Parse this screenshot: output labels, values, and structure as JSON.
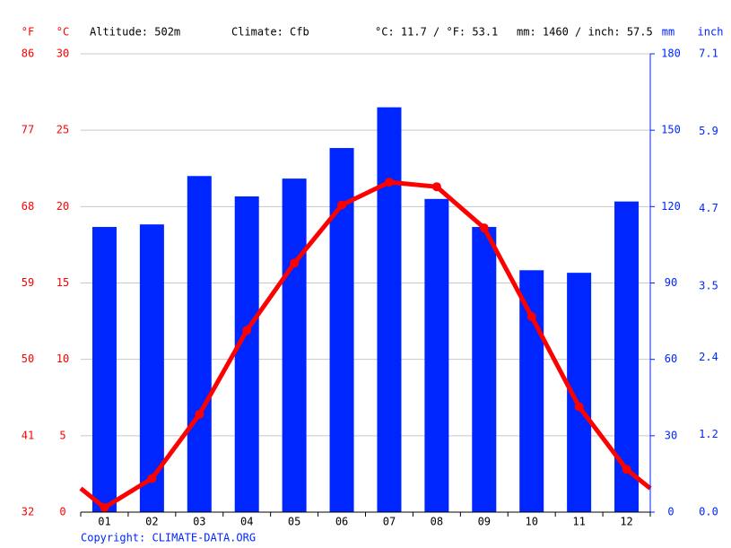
{
  "chart_data": {
    "type": "combo",
    "header": {
      "altitude": "Altitude: 502m",
      "climate": "Climate: Cfb",
      "temperature_mean": "°C: 11.7 / °F: 53.1",
      "precipitation_total": "mm: 1460 / inch: 57.5"
    },
    "copyright": "Copyright: CLIMATE-DATA.ORG",
    "categories": [
      "01",
      "02",
      "03",
      "04",
      "05",
      "06",
      "07",
      "08",
      "09",
      "10",
      "11",
      "12"
    ],
    "series": [
      {
        "type": "bar",
        "color": "#0026ff",
        "axis": "y2",
        "values": [
          112,
          113,
          132,
          124,
          131,
          143,
          159,
          123,
          112,
          95,
          94,
          122
        ]
      },
      {
        "type": "line",
        "color": "#ff0000",
        "values": [
          0.3,
          2.2,
          6.4,
          11.9,
          16.3,
          20.1,
          21.6,
          21.3,
          18.6,
          12.8,
          6.9,
          2.8
        ]
      }
    ],
    "y_label": "°C",
    "ylim": [
      0,
      30
    ],
    "yticks": [
      0,
      5,
      10,
      15,
      20,
      25,
      30
    ],
    "y2_label": "mm",
    "y2lim": [
      0,
      180
    ],
    "y2ticks": [
      0,
      30,
      60,
      90,
      120,
      150,
      180
    ],
    "fahrenheit_axis": {
      "label": "°F",
      "lim": [
        32,
        86
      ],
      "ticks": [
        32,
        41,
        50,
        59,
        68,
        77,
        86
      ]
    },
    "inch_axis": {
      "label": "inch",
      "lim": [
        0,
        7.1
      ],
      "ticks": [
        {
          "value": 0,
          "label": "0.0"
        },
        1.2,
        2.4,
        3.5,
        4.7,
        5.9,
        7.1
      ]
    },
    "grid": true
  }
}
